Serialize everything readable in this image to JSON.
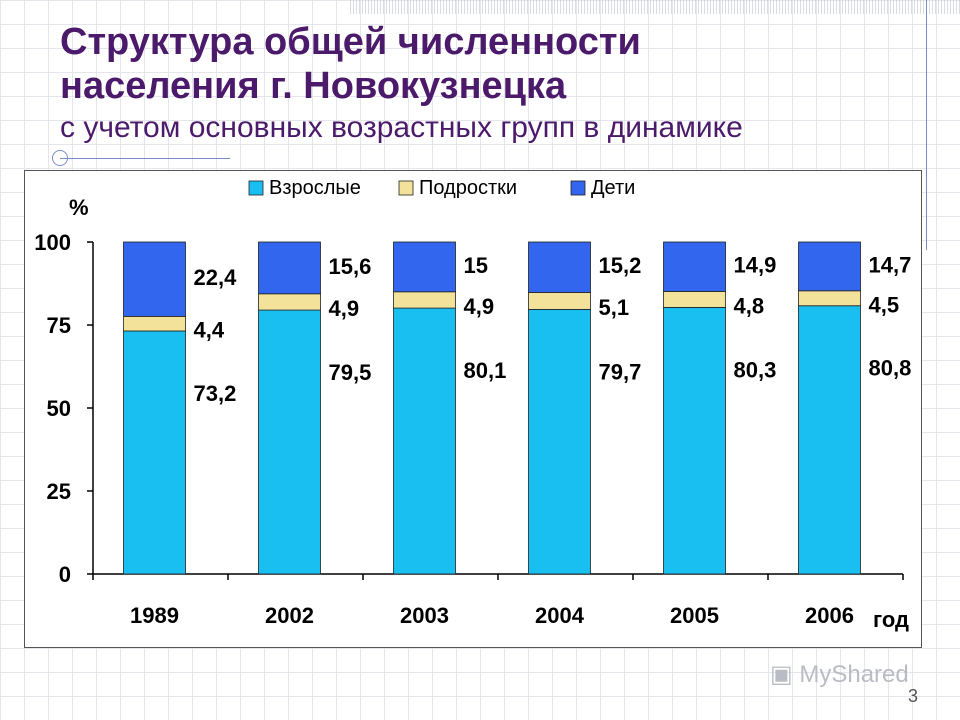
{
  "slide": {
    "title_line1": "Структура общей численности",
    "title_line2": "населения г. Новокузнецка",
    "subtitle": "с учетом основных возрастных групп в динамике",
    "watermark": "MyShared",
    "page_number": "3"
  },
  "colors": {
    "title": "#4b1a6b",
    "adults": "#18bff0",
    "teens": "#f2e29a",
    "children": "#3366ee"
  },
  "chart_data": {
    "type": "bar",
    "stacked": true,
    "categories": [
      "1989",
      "2002",
      "2003",
      "2004",
      "2005",
      "2006"
    ],
    "series": [
      {
        "name": "Взрослые",
        "values": [
          73.2,
          79.5,
          80.1,
          79.7,
          80.3,
          80.8
        ]
      },
      {
        "name": "Подростки",
        "values": [
          4.4,
          4.9,
          4.9,
          5.1,
          4.8,
          4.5
        ]
      },
      {
        "name": "Дети",
        "values": [
          22.4,
          15.6,
          15,
          15.2,
          14.9,
          14.7
        ]
      }
    ],
    "labels": {
      "Взрослые": [
        "73,2",
        "79,5",
        "80,1",
        "79,7",
        "80,3",
        "80,8"
      ],
      "Подростки": [
        "4,4",
        "4,9",
        "4,9",
        "5,1",
        "4,8",
        "4,5"
      ],
      "Дети": [
        "22,4",
        "15,6",
        "15",
        "15,2",
        "14,9",
        "14,7"
      ]
    },
    "ylabel": "%",
    "xlabel": "год",
    "ylim": [
      0,
      100
    ],
    "yticks": [
      0,
      25,
      50,
      75,
      100
    ],
    "legend_position": "top",
    "grid": false
  }
}
